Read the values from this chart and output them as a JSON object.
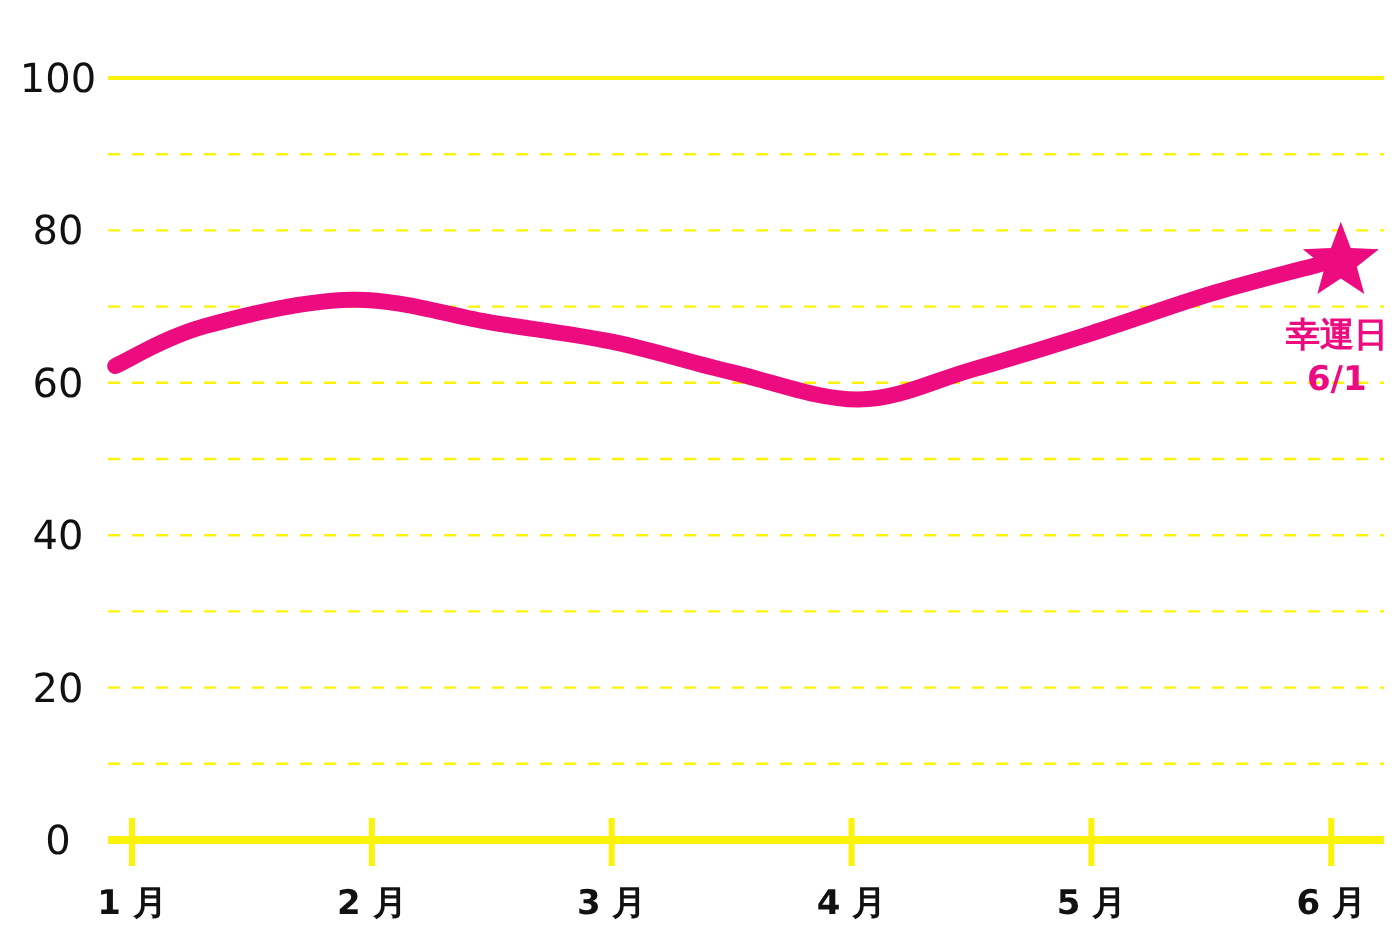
{
  "chart_data": {
    "type": "line",
    "series": [
      {
        "color": "#ec0c80",
        "marker": "none",
        "x": [
          0.93,
          1.3,
          1.92,
          2.5,
          3.0,
          3.5,
          4.03,
          4.5,
          5.0,
          5.5,
          5.97
        ],
        "values": [
          62.2,
          67.4,
          70.9,
          67.9,
          65.4,
          61.4,
          57.8,
          61.7,
          66.5,
          71.7,
          75.7
        ]
      },
      {
        "type": "scatter",
        "color": "#ec0c80",
        "marker": "star",
        "x": [
          6.04
        ],
        "values": [
          75.9
        ]
      }
    ],
    "xlim": [
      0.9,
      6.22
    ],
    "xticks": [
      {
        "value": 1,
        "label": "1 月"
      },
      {
        "value": 2,
        "label": "2 月"
      },
      {
        "value": 3,
        "label": "3 月"
      },
      {
        "value": 4,
        "label": "4 月"
      },
      {
        "value": 5,
        "label": "5 月"
      },
      {
        "value": 6,
        "label": "6 月"
      }
    ],
    "ylim": [
      0,
      100
    ],
    "yticks": [
      0,
      {
        "value": 10,
        "label": null
      },
      20,
      {
        "value": 30,
        "label": null
      },
      40,
      {
        "value": 50,
        "label": null
      },
      60,
      {
        "value": 70,
        "label": null
      },
      80,
      {
        "value": 90,
        "label": null
      },
      100
    ],
    "grid": "y",
    "annotations": [
      {
        "text": "幸運日\n6/1",
        "x": 6.04,
        "y": 75.9
      }
    ]
  }
}
